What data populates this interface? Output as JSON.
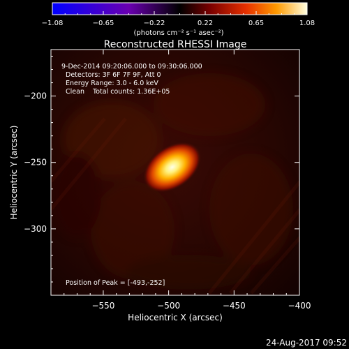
{
  "colorbar": {
    "ticks": [
      "-1.08",
      "-0.65",
      "-0.22",
      "0.22",
      "0.65",
      "1.08"
    ],
    "units": "(photons cm⁻² s⁻¹ asec⁻²)",
    "range": [
      -1.08,
      1.08
    ]
  },
  "title": "Reconstructed RHESSI Image",
  "info": {
    "line1": "9-Dec-2014 09:20:06.000 to 09:30:06.000",
    "line2": "Detectors: 3F 6F 7F 9F, Att 0",
    "line3": "Energy Range: 3.0 - 6.0 keV",
    "line4": "Clean    Total counts: 1.36E+05"
  },
  "peak_label": "Position of Peak = [-493,-252]",
  "footer_date": "24-Aug-2017 09:52",
  "chart_data": {
    "type": "heatmap",
    "title": "Reconstructed RHESSI Image",
    "xlabel": "Heliocentric X (arcsec)",
    "ylabel": "Heliocentric Y (arcsec)",
    "xlim": [
      -590,
      -400
    ],
    "ylim": [
      -350,
      -165
    ],
    "xticks": [
      -550,
      -500,
      -450,
      -400
    ],
    "xtick_labels": [
      "−550",
      "−500",
      "−450",
      "−400"
    ],
    "yticks": [
      -200,
      -250,
      -300
    ],
    "ytick_labels": [
      "−200",
      "−250",
      "−300"
    ],
    "peak": {
      "x": -493,
      "y": -252
    },
    "colormap": "hot",
    "colors": {
      "background": "#000000",
      "axis": "#ffffff"
    }
  }
}
